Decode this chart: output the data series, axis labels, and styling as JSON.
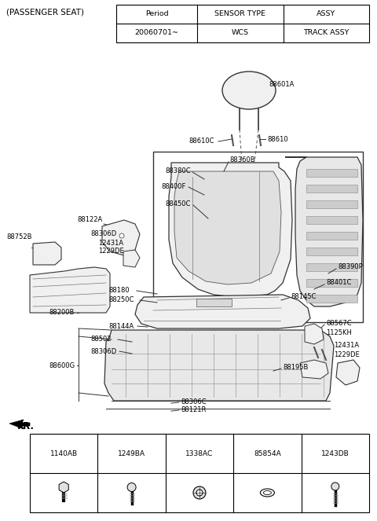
{
  "bg_color": "#ffffff",
  "title_text": "(PASSENGER SEAT)",
  "table_headers": [
    "Period",
    "SENSOR TYPE",
    "ASSY"
  ],
  "table_row": [
    "20060701~",
    "WCS",
    "TRACK ASSY"
  ],
  "fr_label": "FR.",
  "fastener_labels": [
    "1140AB",
    "1249BA",
    "1338AC",
    "85854A",
    "1243DB"
  ],
  "line_color": "#222222",
  "light_fill": "#f0f0f0",
  "mid_fill": "#e0e0e0"
}
